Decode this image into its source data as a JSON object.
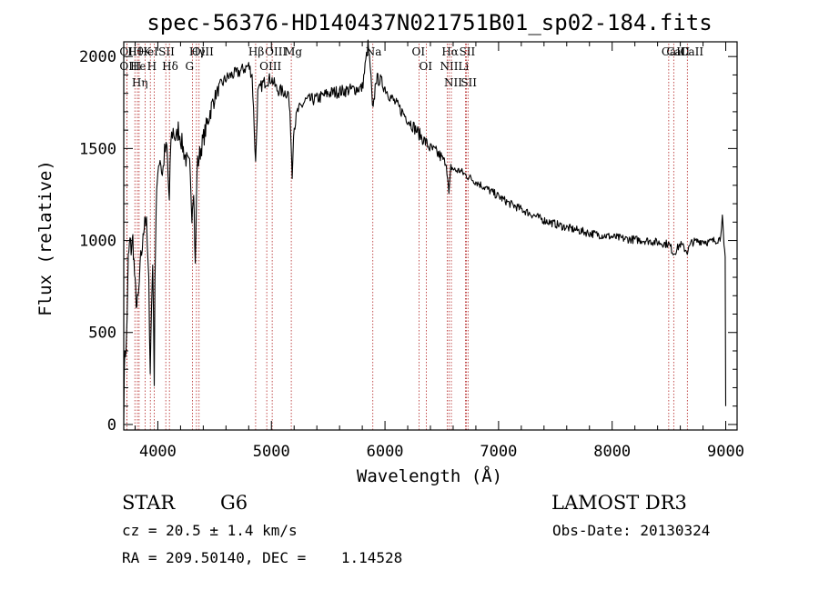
{
  "chart_data": {
    "type": "line",
    "title": "spec-56376-HD140437N021751B01_sp02-184.fits",
    "xlabel": "Wavelength (Å)",
    "ylabel": "Flux (relative)",
    "xlim": [
      3700,
      9100
    ],
    "ylim": [
      -30,
      2080
    ],
    "x_ticks": [
      4000,
      5000,
      6000,
      7000,
      8000,
      9000
    ],
    "y_ticks": [
      0,
      500,
      1000,
      1500,
      2000
    ],
    "line_color": "#000000",
    "marker_color": "#b22222",
    "spectrum": {
      "name": "flux",
      "points": [
        [
          3700,
          80
        ],
        [
          3710,
          420
        ],
        [
          3720,
          380
        ],
        [
          3730,
          600
        ],
        [
          3740,
          900
        ],
        [
          3755,
          1000
        ],
        [
          3765,
          950
        ],
        [
          3780,
          1010
        ],
        [
          3790,
          880
        ],
        [
          3800,
          750
        ],
        [
          3815,
          640
        ],
        [
          3830,
          700
        ],
        [
          3850,
          900
        ],
        [
          3870,
          1000
        ],
        [
          3885,
          1150
        ],
        [
          3900,
          1080
        ],
        [
          3920,
          760
        ],
        [
          3933,
          300
        ],
        [
          3945,
          650
        ],
        [
          3955,
          900
        ],
        [
          3968,
          260
        ],
        [
          3975,
          800
        ],
        [
          3985,
          1150
        ],
        [
          4000,
          1400
        ],
        [
          4020,
          1450
        ],
        [
          4040,
          1350
        ],
        [
          4060,
          1480
        ],
        [
          4080,
          1500
        ],
        [
          4101,
          1200
        ],
        [
          4115,
          1550
        ],
        [
          4135,
          1600
        ],
        [
          4160,
          1540
        ],
        [
          4180,
          1610
        ],
        [
          4200,
          1560
        ],
        [
          4230,
          1480
        ],
        [
          4260,
          1420
        ],
        [
          4280,
          1400
        ],
        [
          4300,
          1150
        ],
        [
          4315,
          1300
        ],
        [
          4330,
          850
        ],
        [
          4345,
          1400
        ],
        [
          4380,
          1500
        ],
        [
          4420,
          1600
        ],
        [
          4460,
          1700
        ],
        [
          4500,
          1780
        ],
        [
          4550,
          1840
        ],
        [
          4600,
          1880
        ],
        [
          4650,
          1900
        ],
        [
          4700,
          1910
        ],
        [
          4750,
          1930
        ],
        [
          4800,
          1950
        ],
        [
          4830,
          1900
        ],
        [
          4861,
          1420
        ],
        [
          4880,
          1800
        ],
        [
          4920,
          1850
        ],
        [
          4960,
          1870
        ],
        [
          5000,
          1880
        ],
        [
          5050,
          1820
        ],
        [
          5100,
          1810
        ],
        [
          5150,
          1800
        ],
        [
          5170,
          1600
        ],
        [
          5183,
          1350
        ],
        [
          5195,
          1600
        ],
        [
          5230,
          1700
        ],
        [
          5300,
          1760
        ],
        [
          5400,
          1770
        ],
        [
          5500,
          1800
        ],
        [
          5600,
          1810
        ],
        [
          5700,
          1820
        ],
        [
          5800,
          1830
        ],
        [
          5850,
          2060
        ],
        [
          5870,
          1950
        ],
        [
          5890,
          1720
        ],
        [
          5896,
          1700
        ],
        [
          5920,
          1880
        ],
        [
          5960,
          1870
        ],
        [
          6000,
          1830
        ],
        [
          6050,
          1780
        ],
        [
          6100,
          1740
        ],
        [
          6150,
          1700
        ],
        [
          6200,
          1660
        ],
        [
          6250,
          1620
        ],
        [
          6300,
          1580
        ],
        [
          6350,
          1540
        ],
        [
          6400,
          1500
        ],
        [
          6450,
          1480
        ],
        [
          6500,
          1450
        ],
        [
          6540,
          1420
        ],
        [
          6563,
          1250
        ],
        [
          6580,
          1400
        ],
        [
          6620,
          1380
        ],
        [
          6660,
          1380
        ],
        [
          6700,
          1360
        ],
        [
          6750,
          1340
        ],
        [
          6800,
          1320
        ],
        [
          6900,
          1280
        ],
        [
          7000,
          1240
        ],
        [
          7100,
          1200
        ],
        [
          7200,
          1170
        ],
        [
          7300,
          1140
        ],
        [
          7400,
          1110
        ],
        [
          7500,
          1090
        ],
        [
          7600,
          1070
        ],
        [
          7700,
          1055
        ],
        [
          7800,
          1040
        ],
        [
          7900,
          1030
        ],
        [
          8000,
          1020
        ],
        [
          8100,
          1010
        ],
        [
          8200,
          1005
        ],
        [
          8300,
          1000
        ],
        [
          8400,
          990
        ],
        [
          8500,
          980
        ],
        [
          8542,
          930
        ],
        [
          8600,
          980
        ],
        [
          8662,
          940
        ],
        [
          8700,
          990
        ],
        [
          8800,
          1000
        ],
        [
          8850,
          990
        ],
        [
          8900,
          1000
        ],
        [
          8950,
          1010
        ],
        [
          8970,
          1130
        ],
        [
          8985,
          960
        ],
        [
          8995,
          900
        ],
        [
          9000,
          100
        ]
      ]
    },
    "line_markers": [
      {
        "label": "Hθ",
        "wavelength": 3798
      },
      {
        "label": "OII",
        "wavelength": 3727
      },
      {
        "label": "OIII",
        "wavelength": 3727
      },
      {
        "label": "He",
        "wavelength": 3820
      },
      {
        "label": "Hη",
        "wavelength": 3835
      },
      {
        "label": "K",
        "wavelength": 3934
      },
      {
        "label": "H",
        "wavelength": 3969
      },
      {
        "label": "HeI",
        "wavelength": 3889
      },
      {
        "label": "SII",
        "wavelength": 4070
      },
      {
        "label": "Hδ",
        "wavelength": 4102
      },
      {
        "label": "OIII",
        "wavelength": 4363
      },
      {
        "label": "Hγ",
        "wavelength": 4340
      },
      {
        "label": "G",
        "wavelength": 4305
      },
      {
        "label": "OIII",
        "wavelength": 5007
      },
      {
        "label": "Hβ",
        "wavelength": 4861
      },
      {
        "label": "OIII",
        "wavelength": 4959
      },
      {
        "label": "Mg",
        "wavelength": 5175
      },
      {
        "label": "Na",
        "wavelength": 5893
      },
      {
        "label": "OI",
        "wavelength": 6300
      },
      {
        "label": "OI",
        "wavelength": 6364
      },
      {
        "label": "Hα",
        "wavelength": 6563
      },
      {
        "label": "NII",
        "wavelength": 6548
      },
      {
        "label": "NII",
        "wavelength": 6584
      },
      {
        "label": "SII",
        "wavelength": 6717
      },
      {
        "label": "Li",
        "wavelength": 6708
      },
      {
        "label": "SII",
        "wavelength": 6731
      },
      {
        "label": "CaII",
        "wavelength": 8498
      },
      {
        "label": "CaII",
        "wavelength": 8542
      },
      {
        "label": "CaII",
        "wavelength": 8662
      }
    ]
  },
  "info": {
    "object_type": "STAR",
    "spectral_class": "G6",
    "survey": "LAMOST DR3",
    "redshift": "cz = 20.5 ± 1.4 km/s",
    "obs_date": "Obs-Date: 20130324",
    "coords": "RA = 209.50140, DEC =    1.14528"
  }
}
